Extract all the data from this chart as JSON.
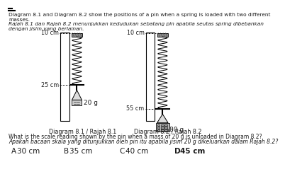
{
  "title_line1": "Diagram 8.1 and Diagram 8.2 show the positions of a pin when a spring is loaded with two different",
  "title_line2": "masses.",
  "subtitle_line1": "Rajah 8.1 dan Rajah 8.2 menunjukkan kedudukan sebatang pin apabila seutas spring dibebankan",
  "subtitle_line2": "dengan jisim yang berlainan.",
  "diagram1_label": "Diagram 8.1 / Rajah 8.1",
  "diagram2_label": "Diagram 8.2 / Rajah 8.2",
  "d1_top_mark": "10 cm",
  "d1_pin_mark": "25 cm",
  "d1_mass_label": "20 g",
  "d2_top_mark": "10 cm",
  "d2_pin_mark": "55 cm",
  "d2_mass_label": "80 g",
  "question_line1": "What is the scale reading shown by the pin when a mass of 20 g is unloaded in Diagram 8.2?",
  "question_line2": "Apakah bacaan skala yang ditunjukkan oleh pin itu apabila jisim 20 g dikeluarkan dalam Rajah 8.2?",
  "ans_A_letter": "A",
  "ans_A_val": "30 cm",
  "ans_B_letter": "B",
  "ans_B_val": "35 cm",
  "ans_C_letter": "C",
  "ans_C_val": "40 cm",
  "ans_D_letter": "D",
  "ans_D_val": "45 cm",
  "bg_color": "#ffffff",
  "text_color": "#1a1a1a",
  "bold_answer_idx": 3
}
